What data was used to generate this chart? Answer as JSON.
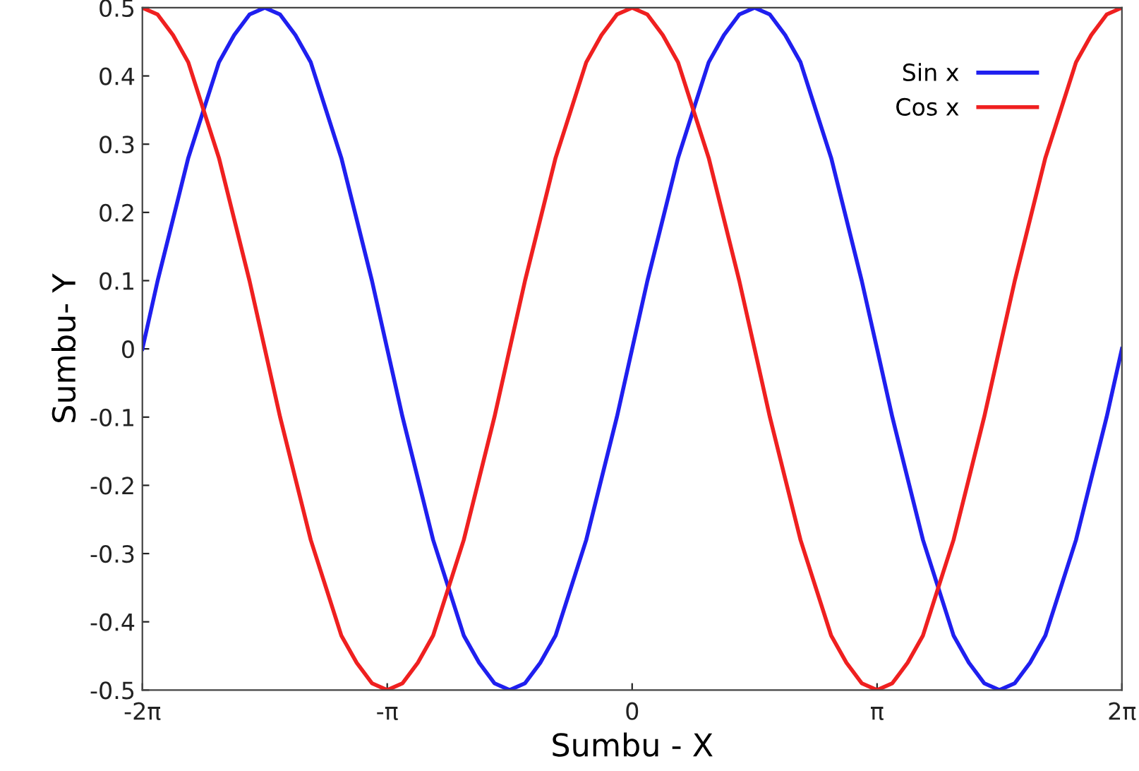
{
  "chart_data": {
    "type": "line",
    "xlabel": "Sumbu - X",
    "ylabel": "Sumbu- Y",
    "x": [
      -6.283,
      -6.087,
      -5.89,
      -5.694,
      -5.498,
      -5.301,
      -5.105,
      -4.909,
      -4.712,
      -4.516,
      -4.32,
      -4.123,
      -3.927,
      -3.731,
      -3.534,
      -3.338,
      -3.142,
      -2.945,
      -2.749,
      -2.553,
      -2.356,
      -2.16,
      -1.963,
      -1.767,
      -1.571,
      -1.374,
      -1.178,
      -0.982,
      -0.785,
      -0.589,
      -0.393,
      -0.196,
      0,
      0.196,
      0.393,
      0.589,
      0.785,
      0.982,
      1.178,
      1.374,
      1.571,
      1.767,
      1.963,
      2.16,
      2.356,
      2.553,
      2.749,
      2.945,
      3.142,
      3.338,
      3.534,
      3.731,
      3.927,
      4.123,
      4.32,
      4.516,
      4.712,
      4.909,
      5.105,
      5.301,
      5.498,
      5.694,
      5.89,
      6.087,
      6.283
    ],
    "series": [
      {
        "name": "Sin x",
        "color": "#1f1fef",
        "values": [
          0,
          0.1,
          0.19,
          0.28,
          0.35,
          0.42,
          0.46,
          0.49,
          0.5,
          0.49,
          0.46,
          0.42,
          0.35,
          0.28,
          0.19,
          0.1,
          0,
          -0.1,
          -0.19,
          -0.28,
          -0.35,
          -0.42,
          -0.46,
          -0.49,
          -0.5,
          -0.49,
          -0.46,
          -0.42,
          -0.35,
          -0.28,
          -0.19,
          -0.1,
          0,
          0.1,
          0.19,
          0.28,
          0.35,
          0.42,
          0.46,
          0.49,
          0.5,
          0.49,
          0.46,
          0.42,
          0.35,
          0.28,
          0.19,
          0.1,
          0,
          -0.1,
          -0.19,
          -0.28,
          -0.35,
          -0.42,
          -0.46,
          -0.49,
          -0.5,
          -0.49,
          -0.46,
          -0.42,
          -0.35,
          -0.28,
          -0.19,
          -0.1,
          0
        ]
      },
      {
        "name": "Cos x",
        "color": "#ef2020",
        "values": [
          0.5,
          0.49,
          0.46,
          0.42,
          0.35,
          0.28,
          0.19,
          0.1,
          0,
          -0.1,
          -0.19,
          -0.28,
          -0.35,
          -0.42,
          -0.46,
          -0.49,
          -0.5,
          -0.49,
          -0.46,
          -0.42,
          -0.35,
          -0.28,
          -0.19,
          -0.1,
          0,
          0.1,
          0.19,
          0.28,
          0.35,
          0.42,
          0.46,
          0.49,
          0.5,
          0.49,
          0.46,
          0.42,
          0.35,
          0.28,
          0.19,
          0.1,
          0,
          -0.1,
          -0.19,
          -0.28,
          -0.35,
          -0.42,
          -0.46,
          -0.49,
          -0.5,
          -0.49,
          -0.46,
          -0.42,
          -0.35,
          -0.28,
          -0.19,
          -0.1,
          0,
          0.1,
          0.19,
          0.28,
          0.35,
          0.42,
          0.46,
          0.49,
          0.5
        ]
      }
    ],
    "xlim": [
      -6.283,
      6.283
    ],
    "xticks": [
      {
        "value": -6.283,
        "label": "-2π"
      },
      {
        "value": -3.142,
        "label": "-π"
      },
      0,
      {
        "value": 3.142,
        "label": "π"
      },
      {
        "value": 6.283,
        "label": "2π"
      }
    ],
    "ylim": [
      -0.5,
      0.5
    ],
    "yticks": [
      -0.5,
      -0.4,
      -0.3,
      -0.2,
      -0.1,
      0,
      0.1,
      0.2,
      0.3,
      0.4,
      0.5
    ],
    "grid": false,
    "legend": "top right",
    "marker": "none",
    "line_style": "solid"
  }
}
